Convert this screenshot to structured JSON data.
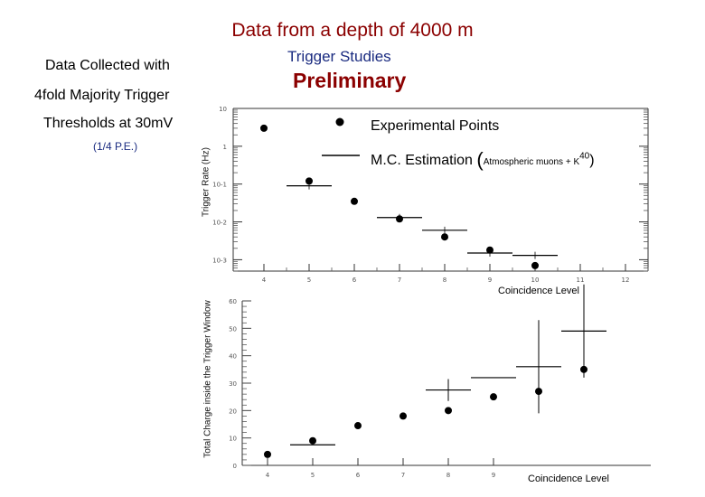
{
  "header": {
    "title": "Data from a depth of 4000 m",
    "trigger_studies": "Trigger Studies",
    "preliminary": "Preliminary"
  },
  "info": {
    "line1": "Data Collected with",
    "line2": "4fold Majority  Trigger",
    "line3": "Thresholds at 30mV",
    "line4": "(1/4 P.E.)"
  },
  "legend": {
    "points": "Experimental Points",
    "mc_main": "M.C. Estimation ",
    "mc_detail": "Atmospheric muons + K",
    "mc_sup": "40"
  },
  "colors": {
    "title": "#8b0000",
    "accent_blue": "#1a2b80"
  },
  "chart_data": [
    {
      "type": "scatter",
      "title": "",
      "xlabel": "Coincidence Level",
      "ylabel": "Trigger Rate (Hz)",
      "yscale": "log",
      "xlim": [
        3.5,
        12.5
      ],
      "ylim": [
        0.0005,
        10
      ],
      "x_ticks": [
        "4",
        "5",
        "6",
        "7",
        "8",
        "9",
        "10",
        "11",
        "12"
      ],
      "y_ticks": [
        "10",
        "1",
        "10-1",
        "10-2",
        "10-3"
      ],
      "series": [
        {
          "name": "Experimental Points",
          "x": [
            4,
            5,
            6,
            7,
            8,
            9,
            10
          ],
          "y": [
            3,
            0.12,
            0.035,
            0.012,
            0.004,
            0.0018,
            0.0007
          ]
        },
        {
          "name": "M.C. Estimation",
          "x": [
            5,
            7,
            8,
            9,
            10
          ],
          "y": [
            0.09,
            0.013,
            0.006,
            0.0015,
            0.0013
          ]
        }
      ]
    },
    {
      "type": "scatter",
      "title": "",
      "xlabel": "Coincidence Level",
      "ylabel": "Total Charge inside the Trigger Window",
      "xlim": [
        3.5,
        11
      ],
      "ylim": [
        0,
        60
      ],
      "x_ticks": [
        "4",
        "5",
        "6",
        "7",
        "8",
        "9"
      ],
      "y_ticks": [
        "60",
        "50",
        "40",
        "30",
        "20",
        "10",
        "0"
      ],
      "series": [
        {
          "name": "Experimental Points",
          "x": [
            4,
            5,
            6,
            7,
            8,
            9,
            10,
            11
          ],
          "y": [
            4,
            9,
            14.5,
            18,
            20,
            25,
            27,
            35
          ]
        },
        {
          "name": "M.C. Estimation",
          "x": [
            5,
            8,
            9,
            10,
            11
          ],
          "y": [
            7.5,
            27.5,
            32,
            36,
            49
          ],
          "err": [
            0,
            4,
            0,
            17,
            17
          ]
        }
      ]
    }
  ]
}
